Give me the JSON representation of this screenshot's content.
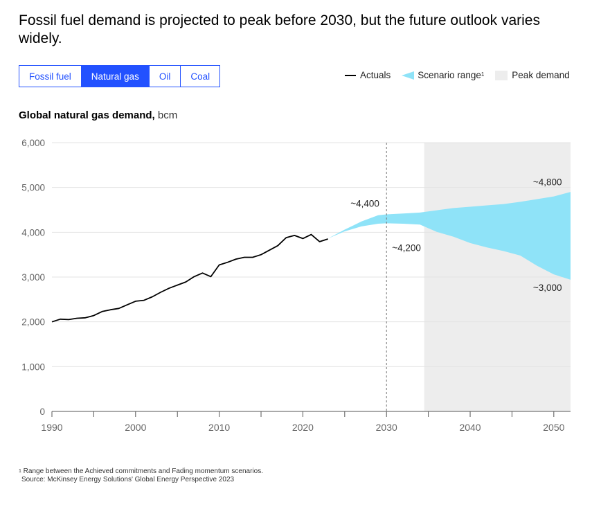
{
  "headline": "Fossil fuel demand is projected to peak before 2030, but the future outlook varies widely.",
  "tabs": [
    {
      "label": "Fossil fuel",
      "active": false
    },
    {
      "label": "Natural gas",
      "active": true
    },
    {
      "label": "Oil",
      "active": false
    },
    {
      "label": "Coal",
      "active": false
    }
  ],
  "legend": {
    "actuals": "Actuals",
    "scenario": "Scenario range",
    "scenario_sup": "1",
    "peak": "Peak demand"
  },
  "colors": {
    "accent": "#2251ff",
    "scenario": "#8fe3f8",
    "peak": "#ededed",
    "actuals": "#000000"
  },
  "chart_title": {
    "bold": "Global natural gas demand,",
    "unit": " bcm"
  },
  "footnote": {
    "sup": "1",
    "line1": " Range between the Achieved commitments and Fading momentum scenarios.",
    "line2": "Source: McKinsey Energy Solutions' Global Energy Perspective 2023"
  },
  "chart_data": {
    "type": "line",
    "title": "Global natural gas demand, bcm",
    "xlim": [
      1990,
      2052
    ],
    "ylim": [
      0,
      6000
    ],
    "y_ticks": [
      0,
      1000,
      2000,
      3000,
      4000,
      5000,
      6000
    ],
    "y_tick_labels": [
      "0",
      "1,000",
      "2,000",
      "3,000",
      "4,000",
      "5,000",
      "6,000"
    ],
    "x_ticks": [
      1990,
      2000,
      2010,
      2020,
      2030,
      2040,
      2050
    ],
    "x_tick_labels": [
      "1990",
      "2000",
      "2010",
      "2020",
      "2030",
      "2040",
      "2050"
    ],
    "grid": true,
    "legend_position": "top-right",
    "reference_line_x": 2030,
    "peak_demand_range": [
      2034.5,
      2052
    ],
    "actuals": {
      "name": "Actuals",
      "x": [
        1990,
        1991,
        1992,
        1993,
        1994,
        1995,
        1996,
        1997,
        1998,
        1999,
        2000,
        2001,
        2002,
        2003,
        2004,
        2005,
        2006,
        2007,
        2008,
        2009,
        2010,
        2011,
        2012,
        2013,
        2014,
        2015,
        2016,
        2017,
        2018,
        2019,
        2020,
        2021,
        2022,
        2023
      ],
      "y": [
        2000,
        2060,
        2050,
        2080,
        2090,
        2140,
        2230,
        2270,
        2300,
        2380,
        2460,
        2480,
        2560,
        2660,
        2750,
        2820,
        2890,
        3010,
        3090,
        3010,
        3270,
        3330,
        3400,
        3440,
        3440,
        3500,
        3600,
        3700,
        3880,
        3930,
        3860,
        3950,
        3790,
        3850
      ]
    },
    "scenario_range": {
      "name": "Scenario range",
      "x": [
        2023,
        2025,
        2027,
        2029,
        2030,
        2032,
        2034,
        2036,
        2038,
        2040,
        2042,
        2044,
        2046,
        2048,
        2050,
        2052
      ],
      "upper": [
        3860,
        4060,
        4240,
        4380,
        4400,
        4420,
        4440,
        4490,
        4540,
        4570,
        4600,
        4630,
        4680,
        4740,
        4800,
        4900
      ],
      "lower": [
        3860,
        4020,
        4130,
        4190,
        4200,
        4190,
        4170,
        4010,
        3900,
        3760,
        3660,
        3580,
        3480,
        3250,
        3060,
        2940
      ]
    },
    "annotations": [
      {
        "text": "~4,400",
        "x": 2030,
        "y": 4400
      },
      {
        "text": "~4,200",
        "x": 2030,
        "y": 4200
      },
      {
        "text": "~4,800",
        "x": 2050,
        "y": 4800
      },
      {
        "text": "~3,000",
        "x": 2050,
        "y": 3000
      }
    ]
  }
}
